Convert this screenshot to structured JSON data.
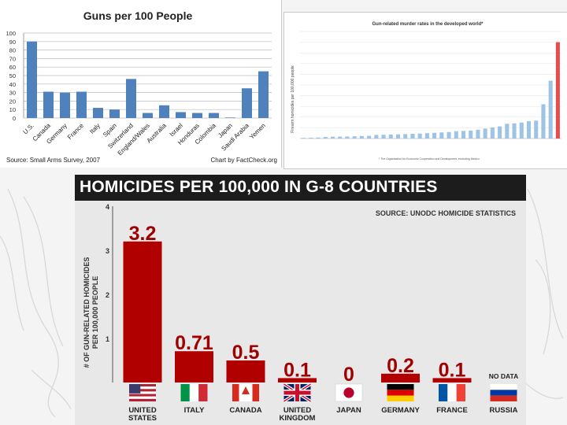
{
  "chart_data": [
    {
      "type": "bar",
      "title": "Guns per 100 People",
      "categories": [
        "U.S.",
        "Canada",
        "Germany",
        "France",
        "Italy",
        "Spain",
        "Switzerland",
        "England/Wales",
        "Australia",
        "Israel",
        "Honduras",
        "Colombia",
        "Japan",
        "Saudi Arabia",
        "Yemen"
      ],
      "values": [
        90,
        31,
        30,
        31,
        12,
        10,
        46,
        6,
        15,
        7,
        6,
        6,
        0.6,
        35,
        55
      ],
      "ylim": [
        0,
        100
      ],
      "yticks": [
        "0",
        "10",
        "20",
        "30",
        "40",
        "50",
        "60",
        "70",
        "80",
        "90",
        "100"
      ],
      "grid": true,
      "bar_color": "#4f81bd",
      "source": "Source: Small Arms Survey, 2007",
      "credit": "Chart by FactCheck.org"
    },
    {
      "type": "bar",
      "title": "Gun-related murder rates in the developed world*",
      "ylabel": "Firearm homicides per 100,000 people",
      "values": [
        0.06,
        0.07,
        0.09,
        0.14,
        0.17,
        0.18,
        0.19,
        0.21,
        0.23,
        0.25,
        0.34,
        0.35,
        0.37,
        0.39,
        0.41,
        0.44,
        0.46,
        0.5,
        0.53,
        0.57,
        0.61,
        0.68,
        0.71,
        0.74,
        0.82,
        0.93,
        1.03,
        1.13,
        1.38,
        1.42,
        1.49,
        1.62,
        1.67,
        3.2,
        5.4,
        9.0
      ],
      "ylim": [
        0,
        10
      ],
      "highlight_index": 35,
      "bar_color": "#9dc3e6",
      "highlight_color": "#e84c4c",
      "footnote": "* The Organisation for Economic Cooperation and Development, excluding Mexico"
    },
    {
      "type": "bar",
      "title": "HOMICIDES PER 100,000 IN G-8 COUNTRIES",
      "source": "SOURCE: UNODC HOMICIDE STATISTICS",
      "ylabel_lines": [
        "# OF GUN-RELATED HOMICIDES",
        "PER 100,000 PEOPLE"
      ],
      "ylim": [
        0,
        4
      ],
      "yticks": [
        "1",
        "2",
        "3",
        "4"
      ],
      "bar_color": "#b00000",
      "label_color": "#a00000",
      "countries": [
        {
          "name": [
            "UNITED",
            "STATES"
          ],
          "value": 3.2,
          "label": "3.2",
          "flag": "us-flag"
        },
        {
          "name": [
            "ITALY"
          ],
          "value": 0.71,
          "label": "0.71",
          "flag": "italy-flag"
        },
        {
          "name": [
            "CANADA"
          ],
          "value": 0.5,
          "label": "0.5",
          "flag": "canada-flag"
        },
        {
          "name": [
            "UNITED",
            "KINGDOM"
          ],
          "value": 0.1,
          "label": "0.1",
          "flag": "uk-flag"
        },
        {
          "name": [
            "JAPAN"
          ],
          "value": 0,
          "label": "0",
          "flag": "japan-flag"
        },
        {
          "name": [
            "GERMANY"
          ],
          "value": 0.2,
          "label": "0.2",
          "flag": "germany-flag"
        },
        {
          "name": [
            "FRANCE"
          ],
          "value": 0.1,
          "label": "0.1",
          "flag": "france-flag"
        },
        {
          "name": [
            "RUSSIA"
          ],
          "value": null,
          "label": "NO DATA",
          "flag": "russia-flag"
        }
      ]
    }
  ]
}
